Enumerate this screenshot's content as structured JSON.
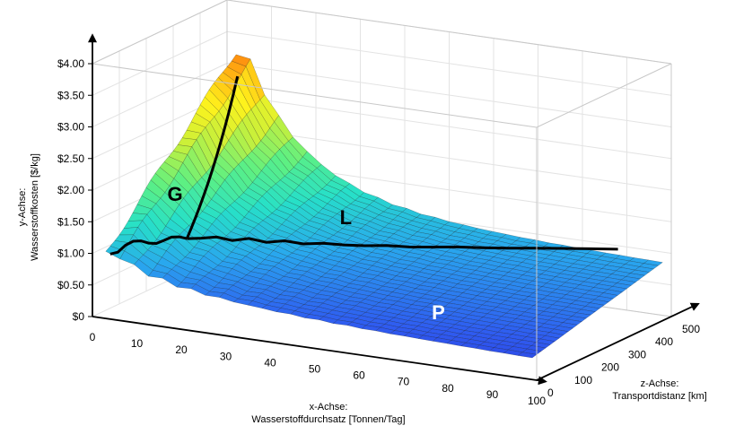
{
  "chart_data": {
    "type": "surface",
    "y_tick_labels": [
      "$0",
      "$0.50",
      "$1.00",
      "$1.50",
      "$2.00",
      "$2.50",
      "$3.00",
      "$3.50",
      "$4.00"
    ],
    "x_tick_labels": [
      "0",
      "10",
      "20",
      "30",
      "40",
      "50",
      "60",
      "70",
      "80",
      "90",
      "100"
    ],
    "z_tick_labels": [
      "0",
      "100",
      "200",
      "300",
      "400",
      "500"
    ],
    "y_axis_label": [
      "y-Achse:",
      "Wasserstoffkosten [$/kg]"
    ],
    "x_axis_label": [
      "x-Achse:",
      "Wasserstoffdurchsatz [Tonnen/Tag]"
    ],
    "z_axis_label": [
      "z-Achse:",
      "Transportdistanz [km]"
    ],
    "xlim": [
      0,
      100
    ],
    "zlim": [
      0,
      500
    ],
    "ylim": [
      0,
      4
    ],
    "grid": true,
    "colormap": [
      "#2a1ed1",
      "#2f5cf0",
      "#29a8ee",
      "#27e0c8",
      "#5cf084",
      "#c9f03a",
      "#fff21c",
      "#ff9b10",
      "#ef3a0a",
      "#8c0a05"
    ],
    "region_labels": [
      "G",
      "L",
      "P"
    ],
    "region_label_colors": [
      "#000000",
      "#000000",
      "#ffffff"
    ],
    "boundary_color": "#000000"
  }
}
